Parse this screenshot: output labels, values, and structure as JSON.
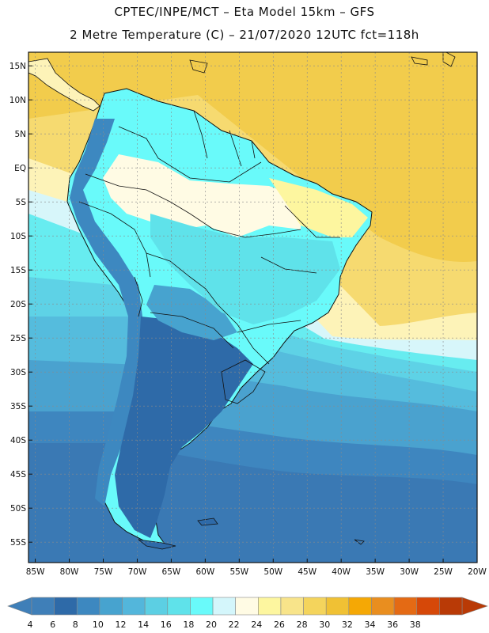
{
  "header": {
    "line1": "CPTEC/INPE/MCT –  Eta Model 15km – GFS",
    "line2": "2 Metre Temperature (C) – 21/07/2020 12UTC fct=118h"
  },
  "map": {
    "lat_range": [
      -58,
      17
    ],
    "lon_range": [
      -86,
      -20
    ],
    "lat_ticks": [
      "15N",
      "10N",
      "5N",
      "EQ",
      "5S",
      "10S",
      "15S",
      "20S",
      "25S",
      "30S",
      "35S",
      "40S",
      "45S",
      "50S",
      "55S"
    ],
    "lon_ticks": [
      "85W",
      "80W",
      "75W",
      "70W",
      "65W",
      "60W",
      "55W",
      "50W",
      "45W",
      "40W",
      "35W",
      "30W",
      "25W",
      "20W"
    ],
    "grid": true
  },
  "colorbar": {
    "labels": [
      "4",
      "6",
      "8",
      "10",
      "12",
      "14",
      "16",
      "18",
      "20",
      "22",
      "24",
      "26",
      "28",
      "30",
      "32",
      "34",
      "36",
      "38"
    ],
    "colors": [
      "#3f7fb8",
      "#2e6aa8",
      "#3d88c0",
      "#47a3cf",
      "#53b6db",
      "#5ccfe3",
      "#5fe2ea",
      "#69fafa",
      "#d4f6fb",
      "#fffbe4",
      "#fdf69f",
      "#f8e48a",
      "#f4d45c",
      "#f0c134",
      "#f5a805",
      "#e98e1f",
      "#e46a14",
      "#d64808",
      "#b93a06"
    ]
  }
}
